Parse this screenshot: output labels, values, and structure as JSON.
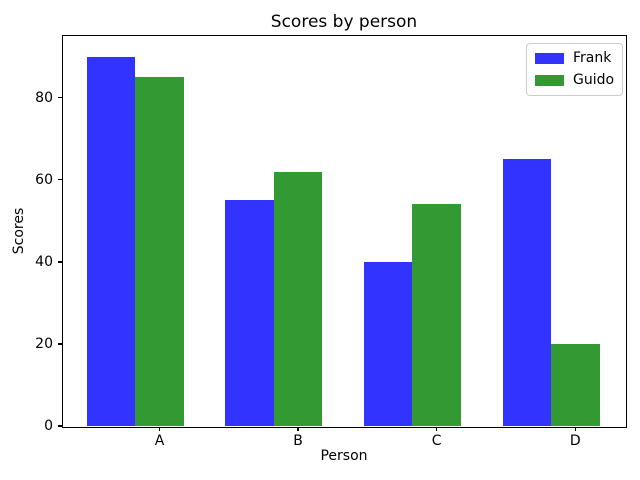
{
  "chart_data": {
    "type": "bar",
    "title": "Scores by person",
    "xlabel": "Person",
    "ylabel": "Scores",
    "categories": [
      "A",
      "B",
      "C",
      "D"
    ],
    "series": [
      {
        "name": "Frank",
        "color": "#3333ff",
        "values": [
          90,
          55,
          40,
          65
        ]
      },
      {
        "name": "Guido",
        "color": "#339933",
        "values": [
          85,
          62,
          54,
          20
        ]
      }
    ],
    "ylim": [
      0,
      95
    ],
    "yticks": [
      0,
      20,
      40,
      60,
      80
    ],
    "grid": false,
    "legend_position": "upper right",
    "bar_width_fraction": 0.35,
    "xtick_anchor": "second-series-bar-center",
    "background": "#ffffff",
    "text_color": "#000000"
  }
}
